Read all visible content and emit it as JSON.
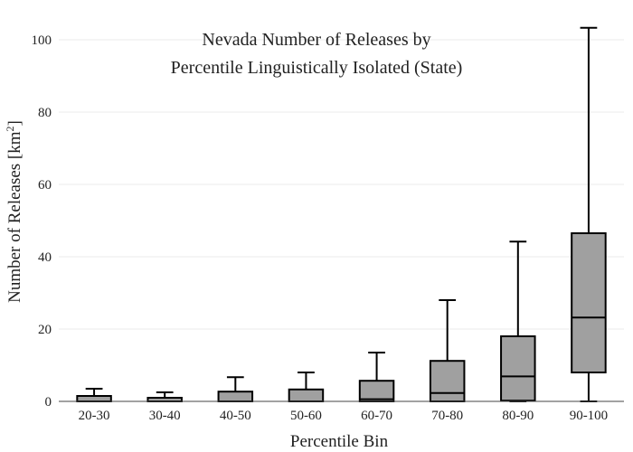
{
  "chart_data": {
    "type": "box",
    "title": "Nevada Number of Releases by",
    "subtitle": "Percentile Linguistically Isolated (State)",
    "xlabel": "Percentile Bin",
    "ylabel_main": "Number of Releases  [km",
    "ylabel_sup": "2",
    "ylabel_close": "]",
    "ylim": [
      0,
      103.5
    ],
    "yticks": [
      0,
      20,
      40,
      60,
      80,
      100
    ],
    "grid": true,
    "colors": {
      "box_fill": "#a0a0a0",
      "box_stroke": "#000000",
      "grid": "#ebebeb",
      "axis": "#444444"
    },
    "categories": [
      "20-30",
      "30-40",
      "40-50",
      "50-60",
      "60-70",
      "70-80",
      "80-90",
      "90-100"
    ],
    "boxes": [
      {
        "min": 0,
        "q1": 0,
        "median": 0,
        "q3": 1.5,
        "max": 3.5
      },
      {
        "min": 0,
        "q1": 0,
        "median": 0,
        "q3": 1.0,
        "max": 2.5
      },
      {
        "min": 0,
        "q1": 0,
        "median": 0,
        "q3": 2.7,
        "max": 6.7
      },
      {
        "min": 0,
        "q1": 0,
        "median": 0,
        "q3": 3.3,
        "max": 8.0
      },
      {
        "min": 0,
        "q1": 0,
        "median": 0.6,
        "q3": 5.7,
        "max": 13.5
      },
      {
        "min": 0,
        "q1": 0,
        "median": 2.3,
        "q3": 11.2,
        "max": 28.0
      },
      {
        "min": 0,
        "q1": 0.2,
        "median": 6.9,
        "q3": 18.0,
        "max": 44.2
      },
      {
        "min": 0,
        "q1": 8.0,
        "median": 23.2,
        "q3": 46.5,
        "max": 103.3
      }
    ]
  }
}
